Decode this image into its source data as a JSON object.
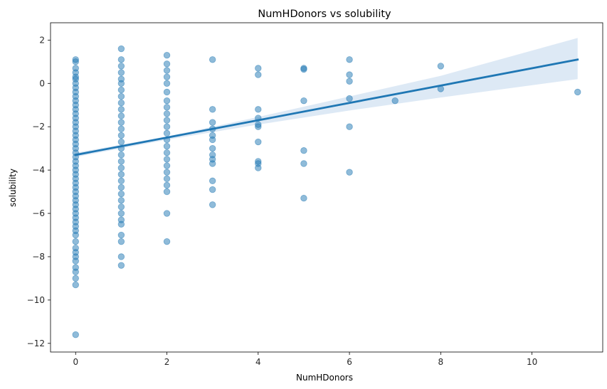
{
  "chart_data": {
    "type": "scatter",
    "title": "NumHDonors vs solubility",
    "xlabel": "NumHDonors",
    "ylabel": "solubility",
    "xlim": [
      -0.55,
      11.55
    ],
    "ylim": [
      -12.4,
      2.8
    ],
    "xticks": [
      0,
      2,
      4,
      6,
      8,
      10
    ],
    "yticks": [
      2,
      0,
      -2,
      -4,
      -6,
      -8,
      -10,
      -12
    ],
    "xtick_labels": [
      "0",
      "2",
      "4",
      "6",
      "8",
      "10"
    ],
    "ytick_labels": [
      "2",
      "0",
      "−2",
      "−4",
      "−6",
      "−8",
      "−10",
      "−12"
    ],
    "grid": false,
    "point_color": "#1f77b4",
    "point_alpha": 0.5,
    "band_color": "#c6dbef",
    "regression": {
      "slope": 0.4,
      "intercept": -3.3,
      "x_range": [
        0,
        11
      ],
      "ci_lower": [
        [
          0,
          -3.4
        ],
        [
          2,
          -2.6
        ],
        [
          4,
          -1.9
        ],
        [
          6,
          -1.25
        ],
        [
          8,
          -0.65
        ],
        [
          11,
          0.2
        ]
      ],
      "ci_upper": [
        [
          0,
          -3.2
        ],
        [
          2,
          -2.45
        ],
        [
          4,
          -1.55
        ],
        [
          6,
          -0.6
        ],
        [
          8,
          0.35
        ],
        [
          11,
          2.1
        ]
      ]
    },
    "series": [
      {
        "points": [
          [
            0,
            1.1
          ],
          [
            0,
            1.0
          ],
          [
            0,
            0.7
          ],
          [
            0,
            0.5
          ],
          [
            0,
            0.3
          ],
          [
            0,
            0.2
          ],
          [
            0,
            0.0
          ],
          [
            0,
            -0.2
          ],
          [
            0,
            -0.4
          ],
          [
            0,
            -0.6
          ],
          [
            0,
            -0.8
          ],
          [
            0,
            -1.0
          ],
          [
            0,
            -1.2
          ],
          [
            0,
            -1.4
          ],
          [
            0,
            -1.6
          ],
          [
            0,
            -1.8
          ],
          [
            0,
            -2.0
          ],
          [
            0,
            -2.2
          ],
          [
            0,
            -2.4
          ],
          [
            0,
            -2.6
          ],
          [
            0,
            -2.8
          ],
          [
            0,
            -3.0
          ],
          [
            0,
            -3.2
          ],
          [
            0,
            -3.4
          ],
          [
            0,
            -3.6
          ],
          [
            0,
            -3.8
          ],
          [
            0,
            -4.0
          ],
          [
            0,
            -4.2
          ],
          [
            0,
            -4.4
          ],
          [
            0,
            -4.6
          ],
          [
            0,
            -4.8
          ],
          [
            0,
            -5.0
          ],
          [
            0,
            -5.2
          ],
          [
            0,
            -5.4
          ],
          [
            0,
            -5.6
          ],
          [
            0,
            -5.8
          ],
          [
            0,
            -6.0
          ],
          [
            0,
            -6.2
          ],
          [
            0,
            -6.4
          ],
          [
            0,
            -6.6
          ],
          [
            0,
            -6.8
          ],
          [
            0,
            -7.0
          ],
          [
            0,
            -7.3
          ],
          [
            0,
            -7.6
          ],
          [
            0,
            -7.8
          ],
          [
            0,
            -8.0
          ],
          [
            0,
            -8.2
          ],
          [
            0,
            -8.5
          ],
          [
            0,
            -8.7
          ],
          [
            0,
            -9.0
          ],
          [
            0,
            -9.3
          ],
          [
            0,
            -11.6
          ],
          [
            1,
            1.6
          ],
          [
            1,
            1.1
          ],
          [
            1,
            0.8
          ],
          [
            1,
            0.5
          ],
          [
            1,
            0.2
          ],
          [
            1,
            0.0
          ],
          [
            1,
            -0.3
          ],
          [
            1,
            -0.6
          ],
          [
            1,
            -0.9
          ],
          [
            1,
            -1.2
          ],
          [
            1,
            -1.5
          ],
          [
            1,
            -1.8
          ],
          [
            1,
            -2.1
          ],
          [
            1,
            -2.4
          ],
          [
            1,
            -2.7
          ],
          [
            1,
            -3.0
          ],
          [
            1,
            -3.3
          ],
          [
            1,
            -3.6
          ],
          [
            1,
            -3.9
          ],
          [
            1,
            -4.2
          ],
          [
            1,
            -4.5
          ],
          [
            1,
            -4.8
          ],
          [
            1,
            -5.1
          ],
          [
            1,
            -5.4
          ],
          [
            1,
            -5.7
          ],
          [
            1,
            -6.0
          ],
          [
            1,
            -6.3
          ],
          [
            1,
            -6.5
          ],
          [
            1,
            -7.0
          ],
          [
            1,
            -7.3
          ],
          [
            1,
            -8.0
          ],
          [
            1,
            -8.4
          ],
          [
            2,
            1.3
          ],
          [
            2,
            0.9
          ],
          [
            2,
            0.6
          ],
          [
            2,
            0.3
          ],
          [
            2,
            0.0
          ],
          [
            2,
            -0.4
          ],
          [
            2,
            -0.8
          ],
          [
            2,
            -1.1
          ],
          [
            2,
            -1.4
          ],
          [
            2,
            -1.7
          ],
          [
            2,
            -2.0
          ],
          [
            2,
            -2.3
          ],
          [
            2,
            -2.6
          ],
          [
            2,
            -2.9
          ],
          [
            2,
            -3.2
          ],
          [
            2,
            -3.5
          ],
          [
            2,
            -3.8
          ],
          [
            2,
            -4.1
          ],
          [
            2,
            -4.4
          ],
          [
            2,
            -4.7
          ],
          [
            2,
            -5.0
          ],
          [
            2,
            -6.0
          ],
          [
            2,
            -7.3
          ],
          [
            3,
            1.1
          ],
          [
            3,
            -1.2
          ],
          [
            3,
            -1.8
          ],
          [
            3,
            -2.1
          ],
          [
            3,
            -2.4
          ],
          [
            3,
            -2.6
          ],
          [
            3,
            -3.0
          ],
          [
            3,
            -3.3
          ],
          [
            3,
            -3.5
          ],
          [
            3,
            -3.7
          ],
          [
            3,
            -4.5
          ],
          [
            3,
            -4.9
          ],
          [
            3,
            -5.6
          ],
          [
            4,
            0.7
          ],
          [
            4,
            0.4
          ],
          [
            4,
            -1.2
          ],
          [
            4,
            -1.6
          ],
          [
            4,
            -1.9
          ],
          [
            4,
            -2.0
          ],
          [
            4,
            -2.7
          ],
          [
            4,
            -3.6
          ],
          [
            4,
            -3.7
          ],
          [
            4,
            -3.9
          ],
          [
            5,
            0.7
          ],
          [
            5,
            0.65
          ],
          [
            5,
            -0.8
          ],
          [
            5,
            -3.1
          ],
          [
            5,
            -3.7
          ],
          [
            5,
            -5.3
          ],
          [
            6,
            1.1
          ],
          [
            6,
            0.4
          ],
          [
            6,
            0.1
          ],
          [
            6,
            -0.7
          ],
          [
            6,
            -2.0
          ],
          [
            6,
            -4.1
          ],
          [
            7,
            -0.8
          ],
          [
            8,
            0.8
          ],
          [
            8,
            -0.25
          ],
          [
            11,
            -0.4
          ]
        ]
      }
    ]
  }
}
